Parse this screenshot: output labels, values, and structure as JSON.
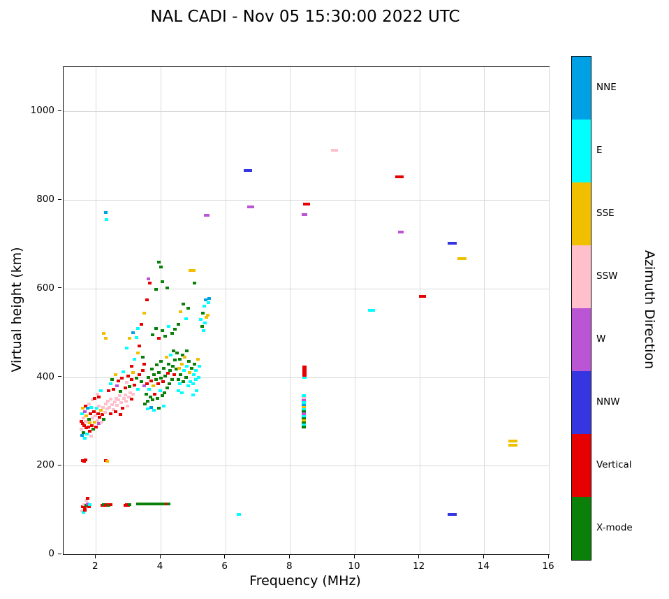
{
  "chart_data": {
    "type": "scatter",
    "title": "NAL CADI - Nov 05 15:30:00 2022 UTC",
    "xlabel": "Frequency (MHz)",
    "ylabel": "Virtual height (km)",
    "xlim": [
      1,
      16
    ],
    "ylim": [
      0,
      1100
    ],
    "xticks": [
      2,
      4,
      6,
      8,
      10,
      12,
      14,
      16
    ],
    "yticks": [
      0,
      200,
      400,
      600,
      800,
      1000
    ],
    "grid": true,
    "colorbar": {
      "label": "Azimuth Direction",
      "segments": [
        {
          "label": "NNE",
          "color": "#00A1E4"
        },
        {
          "label": "E",
          "color": "#00FFFF"
        },
        {
          "label": "SSE",
          "color": "#F0C000"
        },
        {
          "label": "SSW",
          "color": "#FFC0CB"
        },
        {
          "label": "W",
          "color": "#BA55D3"
        },
        {
          "label": "NNW",
          "color": "#3636E0"
        },
        {
          "label": "Vertical",
          "color": "#E60000"
        },
        {
          "label": "X-mode",
          "color": "#0A800A"
        }
      ]
    },
    "categories": {
      "N": {
        "label": "NNE",
        "color": "#00A1E4"
      },
      "E": {
        "label": "E",
        "color": "#00FFFF"
      },
      "S": {
        "label": "SSE",
        "color": "#F0C000"
      },
      "P": {
        "label": "SSW",
        "color": "#FFC0CB"
      },
      "W": {
        "label": "W",
        "color": "#BA55D3"
      },
      "B": {
        "label": "NNW",
        "color": "#3636E0"
      },
      "V": {
        "label": "Vertical",
        "color": "#E60000"
      },
      "X": {
        "label": "X-mode",
        "color": "#0A800A"
      }
    },
    "points": [
      [
        1.6,
        108,
        "V"
      ],
      [
        1.63,
        112,
        "P"
      ],
      [
        1.66,
        106,
        "V"
      ],
      [
        1.7,
        110,
        "X"
      ],
      [
        1.74,
        114,
        "W"
      ],
      [
        1.78,
        108,
        "V"
      ],
      [
        1.82,
        112,
        "E"
      ],
      [
        1.7,
        122,
        "P"
      ],
      [
        1.75,
        126,
        "V"
      ],
      [
        1.58,
        98,
        "P"
      ],
      [
        1.62,
        95,
        "E"
      ],
      [
        1.66,
        100,
        "V"
      ],
      [
        2.2,
        110,
        "V"
      ],
      [
        2.25,
        112,
        "X"
      ],
      [
        2.3,
        110,
        "V"
      ],
      [
        2.35,
        112,
        "V"
      ],
      [
        2.4,
        110,
        "X"
      ],
      [
        2.45,
        112,
        "V"
      ],
      [
        2.9,
        110,
        "V"
      ],
      [
        2.95,
        112,
        "V"
      ],
      [
        3.0,
        110,
        "V"
      ],
      [
        3.05,
        112,
        "X"
      ],
      [
        3.3,
        113,
        "X"
      ],
      [
        3.38,
        113,
        "X"
      ],
      [
        3.46,
        113,
        "X"
      ],
      [
        3.54,
        113,
        "X"
      ],
      [
        3.62,
        113,
        "X"
      ],
      [
        3.7,
        113,
        "X"
      ],
      [
        3.78,
        113,
        "X"
      ],
      [
        3.86,
        113,
        "X"
      ],
      [
        3.94,
        113,
        "X"
      ],
      [
        4.02,
        113,
        "X"
      ],
      [
        4.1,
        113,
        "X"
      ],
      [
        4.18,
        113,
        "V"
      ],
      [
        4.25,
        113,
        "X"
      ],
      [
        1.6,
        212,
        "V"
      ],
      [
        1.64,
        210,
        "V"
      ],
      [
        1.68,
        213,
        "V"
      ],
      [
        2.3,
        212,
        "V"
      ],
      [
        2.34,
        210,
        "S"
      ],
      [
        1.55,
        300,
        "V"
      ],
      [
        1.56,
        282,
        "P"
      ],
      [
        1.58,
        318,
        "E"
      ],
      [
        1.58,
        268,
        "N"
      ],
      [
        1.6,
        295,
        "V"
      ],
      [
        1.6,
        330,
        "S"
      ],
      [
        1.62,
        275,
        "X"
      ],
      [
        1.62,
        308,
        "P"
      ],
      [
        1.64,
        290,
        "V"
      ],
      [
        1.65,
        322,
        "W"
      ],
      [
        1.66,
        262,
        "E"
      ],
      [
        1.68,
        300,
        "P"
      ],
      [
        1.68,
        335,
        "V"
      ],
      [
        1.7,
        285,
        "V"
      ],
      [
        1.7,
        312,
        "S"
      ],
      [
        1.72,
        272,
        "E"
      ],
      [
        1.74,
        298,
        "P"
      ],
      [
        1.74,
        330,
        "N"
      ],
      [
        1.76,
        288,
        "V"
      ],
      [
        1.78,
        305,
        "X"
      ],
      [
        1.78,
        340,
        "P"
      ],
      [
        1.8,
        278,
        "V"
      ],
      [
        1.82,
        296,
        "S"
      ],
      [
        1.84,
        318,
        "V"
      ],
      [
        1.85,
        266,
        "P"
      ],
      [
        1.86,
        332,
        "E"
      ],
      [
        1.88,
        290,
        "V"
      ],
      [
        1.9,
        308,
        "P"
      ],
      [
        1.92,
        282,
        "X"
      ],
      [
        1.94,
        322,
        "V"
      ],
      [
        1.96,
        298,
        "S"
      ],
      [
        1.98,
        312,
        "P"
      ],
      [
        2.0,
        288,
        "V"
      ],
      [
        2.02,
        330,
        "E"
      ],
      [
        2.04,
        302,
        "P"
      ],
      [
        2.06,
        318,
        "V"
      ],
      [
        2.08,
        295,
        "W"
      ],
      [
        2.1,
        335,
        "P"
      ],
      [
        2.12,
        310,
        "V"
      ],
      [
        2.15,
        325,
        "S"
      ],
      [
        2.18,
        298,
        "P"
      ],
      [
        2.2,
        315,
        "V"
      ],
      [
        2.22,
        332,
        "P"
      ],
      [
        2.25,
        305,
        "X"
      ],
      [
        2.28,
        320,
        "P"
      ],
      [
        1.9,
        348,
        "P"
      ],
      [
        1.95,
        352,
        "V"
      ],
      [
        2.05,
        362,
        "P"
      ],
      [
        2.1,
        355,
        "V"
      ],
      [
        2.15,
        370,
        "E"
      ],
      [
        2.3,
        340,
        "P"
      ],
      [
        2.34,
        328,
        "P"
      ],
      [
        2.38,
        345,
        "P"
      ],
      [
        2.42,
        332,
        "P"
      ],
      [
        2.46,
        350,
        "P"
      ],
      [
        2.5,
        338,
        "P"
      ],
      [
        2.54,
        326,
        "P"
      ],
      [
        2.58,
        344,
        "P"
      ],
      [
        2.62,
        352,
        "P"
      ],
      [
        2.66,
        336,
        "P"
      ],
      [
        2.7,
        348,
        "P"
      ],
      [
        2.74,
        358,
        "P"
      ],
      [
        2.78,
        342,
        "P"
      ],
      [
        2.82,
        330,
        "V"
      ],
      [
        2.86,
        352,
        "P"
      ],
      [
        2.9,
        360,
        "P"
      ],
      [
        2.94,
        346,
        "P"
      ],
      [
        2.98,
        334,
        "P"
      ],
      [
        3.02,
        355,
        "P"
      ],
      [
        3.06,
        365,
        "P"
      ],
      [
        3.1,
        350,
        "V"
      ],
      [
        3.15,
        362,
        "P"
      ],
      [
        2.45,
        318,
        "V"
      ],
      [
        2.6,
        322,
        "V"
      ],
      [
        2.75,
        315,
        "V"
      ],
      [
        2.4,
        370,
        "V"
      ],
      [
        2.45,
        385,
        "E"
      ],
      [
        2.5,
        395,
        "X"
      ],
      [
        2.55,
        372,
        "V"
      ],
      [
        2.6,
        405,
        "S"
      ],
      [
        2.65,
        380,
        "W"
      ],
      [
        2.7,
        392,
        "V"
      ],
      [
        2.75,
        368,
        "X"
      ],
      [
        2.8,
        398,
        "V"
      ],
      [
        2.85,
        412,
        "E"
      ],
      [
        2.9,
        375,
        "V"
      ],
      [
        2.95,
        388,
        "P"
      ],
      [
        3.0,
        402,
        "V"
      ],
      [
        3.05,
        378,
        "X"
      ],
      [
        3.1,
        395,
        "V"
      ],
      [
        3.15,
        410,
        "S"
      ],
      [
        3.2,
        382,
        "V"
      ],
      [
        3.25,
        398,
        "X"
      ],
      [
        3.3,
        372,
        "E"
      ],
      [
        3.35,
        405,
        "V"
      ],
      [
        3.4,
        390,
        "X"
      ],
      [
        3.45,
        415,
        "V"
      ],
      [
        3.5,
        380,
        "W"
      ],
      [
        3.1,
        425,
        "V"
      ],
      [
        3.2,
        440,
        "E"
      ],
      [
        3.3,
        455,
        "S"
      ],
      [
        3.35,
        470,
        "V"
      ],
      [
        3.25,
        490,
        "E"
      ],
      [
        3.45,
        445,
        "X"
      ],
      [
        3.5,
        430,
        "V"
      ],
      [
        2.95,
        465,
        "E"
      ],
      [
        3.05,
        488,
        "S"
      ],
      [
        3.15,
        500,
        "N"
      ],
      [
        3.52,
        340,
        "X"
      ],
      [
        3.55,
        362,
        "X"
      ],
      [
        3.58,
        385,
        "V"
      ],
      [
        3.6,
        345,
        "X"
      ],
      [
        3.62,
        400,
        "X"
      ],
      [
        3.65,
        372,
        "E"
      ],
      [
        3.68,
        355,
        "X"
      ],
      [
        3.7,
        392,
        "V"
      ],
      [
        3.72,
        418,
        "X"
      ],
      [
        3.75,
        348,
        "X"
      ],
      [
        3.78,
        380,
        "S"
      ],
      [
        3.8,
        405,
        "X"
      ],
      [
        3.82,
        362,
        "V"
      ],
      [
        3.85,
        395,
        "X"
      ],
      [
        3.88,
        428,
        "X"
      ],
      [
        3.9,
        352,
        "X"
      ],
      [
        3.92,
        385,
        "V"
      ],
      [
        3.95,
        410,
        "X"
      ],
      [
        3.98,
        370,
        "E"
      ],
      [
        4.0,
        398,
        "X"
      ],
      [
        4.02,
        435,
        "X"
      ],
      [
        4.05,
        358,
        "X"
      ],
      [
        4.08,
        390,
        "V"
      ],
      [
        4.1,
        420,
        "X"
      ],
      [
        4.12,
        365,
        "X"
      ],
      [
        4.15,
        402,
        "X"
      ],
      [
        4.18,
        445,
        "S"
      ],
      [
        4.2,
        375,
        "X"
      ],
      [
        4.22,
        408,
        "V"
      ],
      [
        4.25,
        430,
        "X"
      ],
      [
        4.28,
        385,
        "X"
      ],
      [
        4.3,
        415,
        "X"
      ],
      [
        4.32,
        450,
        "E"
      ],
      [
        4.35,
        395,
        "X"
      ],
      [
        4.38,
        425,
        "X"
      ],
      [
        4.4,
        460,
        "X"
      ],
      [
        4.42,
        405,
        "V"
      ],
      [
        4.45,
        438,
        "X"
      ],
      [
        4.48,
        418,
        "X"
      ],
      [
        4.5,
        455,
        "X"
      ],
      [
        3.6,
        328,
        "E"
      ],
      [
        3.7,
        332,
        "N"
      ],
      [
        3.8,
        325,
        "E"
      ],
      [
        3.95,
        330,
        "X"
      ],
      [
        4.1,
        335,
        "E"
      ],
      [
        4.55,
        370,
        "E"
      ],
      [
        4.55,
        395,
        "X"
      ],
      [
        4.58,
        420,
        "S"
      ],
      [
        4.6,
        385,
        "E"
      ],
      [
        4.6,
        440,
        "X"
      ],
      [
        4.62,
        405,
        "X"
      ],
      [
        4.65,
        365,
        "E"
      ],
      [
        4.65,
        430,
        "S"
      ],
      [
        4.68,
        450,
        "X"
      ],
      [
        4.7,
        390,
        "X"
      ],
      [
        4.72,
        415,
        "E"
      ],
      [
        4.75,
        445,
        "S"
      ],
      [
        4.78,
        400,
        "X"
      ],
      [
        4.8,
        425,
        "E"
      ],
      [
        4.82,
        460,
        "X"
      ],
      [
        4.85,
        380,
        "E"
      ],
      [
        4.88,
        435,
        "X"
      ],
      [
        4.9,
        410,
        "S"
      ],
      [
        4.92,
        390,
        "E"
      ],
      [
        4.95,
        420,
        "X"
      ],
      [
        5.0,
        360,
        "E"
      ],
      [
        5.0,
        385,
        "E"
      ],
      [
        5.02,
        405,
        "E"
      ],
      [
        5.05,
        430,
        "X"
      ],
      [
        5.08,
        395,
        "E"
      ],
      [
        5.1,
        415,
        "E"
      ],
      [
        5.12,
        370,
        "E"
      ],
      [
        5.15,
        440,
        "S"
      ],
      [
        5.18,
        400,
        "E"
      ],
      [
        5.2,
        425,
        "E"
      ],
      [
        5.25,
        530,
        "E"
      ],
      [
        5.3,
        545,
        "X"
      ],
      [
        5.35,
        560,
        "E"
      ],
      [
        5.4,
        575,
        "N"
      ],
      [
        5.45,
        540,
        "S"
      ],
      [
        3.58,
        575,
        "V"
      ],
      [
        3.62,
        622,
        "W"
      ],
      [
        3.66,
        612,
        "V"
      ],
      [
        3.95,
        660,
        "X"
      ],
      [
        4.0,
        648,
        "X"
      ],
      [
        4.05,
        615,
        "X"
      ],
      [
        3.85,
        598,
        "X"
      ],
      [
        4.2,
        602,
        "X"
      ],
      [
        4.98,
        640,
        "S",
        10
      ],
      [
        5.05,
        612,
        "X"
      ],
      [
        4.55,
        520,
        "X"
      ],
      [
        4.62,
        548,
        "S"
      ],
      [
        4.7,
        565,
        "X"
      ],
      [
        4.78,
        532,
        "E"
      ],
      [
        4.85,
        555,
        "X"
      ],
      [
        3.4,
        520,
        "V"
      ],
      [
        3.5,
        545,
        "S"
      ],
      [
        3.3,
        510,
        "E"
      ],
      [
        2.25,
        498,
        "S"
      ],
      [
        2.3,
        488,
        "S"
      ],
      [
        3.75,
        495,
        "X"
      ],
      [
        3.85,
        510,
        "X"
      ],
      [
        3.95,
        488,
        "V"
      ],
      [
        4.05,
        505,
        "X"
      ],
      [
        4.15,
        492,
        "X"
      ],
      [
        4.25,
        515,
        "E"
      ],
      [
        4.35,
        498,
        "X"
      ],
      [
        4.45,
        508,
        "X"
      ],
      [
        5.28,
        515,
        "X"
      ],
      [
        5.32,
        505,
        "E"
      ],
      [
        5.38,
        522,
        "E"
      ],
      [
        5.42,
        535,
        "S"
      ],
      [
        5.48,
        568,
        "E"
      ],
      [
        5.5,
        578,
        "N"
      ],
      [
        2.3,
        772,
        "N"
      ],
      [
        2.32,
        756,
        "E"
      ],
      [
        8.42,
        288,
        "X",
        6
      ],
      [
        8.42,
        293,
        "E",
        6
      ],
      [
        8.42,
        298,
        "X",
        6
      ],
      [
        8.42,
        303,
        "S",
        6
      ],
      [
        8.42,
        308,
        "X",
        6
      ],
      [
        8.42,
        313,
        "E",
        6
      ],
      [
        8.42,
        318,
        "W",
        6
      ],
      [
        8.42,
        323,
        "X",
        6
      ],
      [
        8.42,
        328,
        "E",
        6
      ],
      [
        8.42,
        333,
        "S",
        6
      ],
      [
        8.42,
        338,
        "N",
        6
      ],
      [
        8.42,
        343,
        "E",
        6
      ],
      [
        8.42,
        348,
        "W",
        6
      ],
      [
        8.42,
        353,
        "P",
        6
      ],
      [
        8.42,
        358,
        "E",
        6
      ],
      [
        8.45,
        400,
        "E",
        6
      ],
      [
        8.45,
        404,
        "V",
        6
      ],
      [
        8.45,
        409,
        "V",
        6
      ],
      [
        8.45,
        414,
        "V",
        6
      ],
      [
        8.45,
        419,
        "V",
        6
      ],
      [
        8.45,
        423,
        "V",
        6
      ],
      [
        5.42,
        765,
        "W",
        8
      ],
      [
        6.78,
        785,
        "W",
        10
      ],
      [
        6.7,
        867,
        "B",
        12
      ],
      [
        9.38,
        912,
        "P",
        10
      ],
      [
        11.38,
        852,
        "V",
        12
      ],
      [
        8.5,
        790,
        "V",
        10
      ],
      [
        8.45,
        767,
        "W",
        8
      ],
      [
        11.42,
        727,
        "W",
        8
      ],
      [
        13.0,
        703,
        "B",
        13
      ],
      [
        13.32,
        667,
        "S",
        13
      ],
      [
        12.1,
        582,
        "V",
        10
      ],
      [
        10.52,
        551,
        "E",
        10
      ],
      [
        14.88,
        256,
        "S",
        13
      ],
      [
        14.88,
        246,
        "S",
        13
      ],
      [
        13.0,
        90,
        "B",
        13
      ],
      [
        6.42,
        90,
        "E",
        6
      ]
    ]
  }
}
